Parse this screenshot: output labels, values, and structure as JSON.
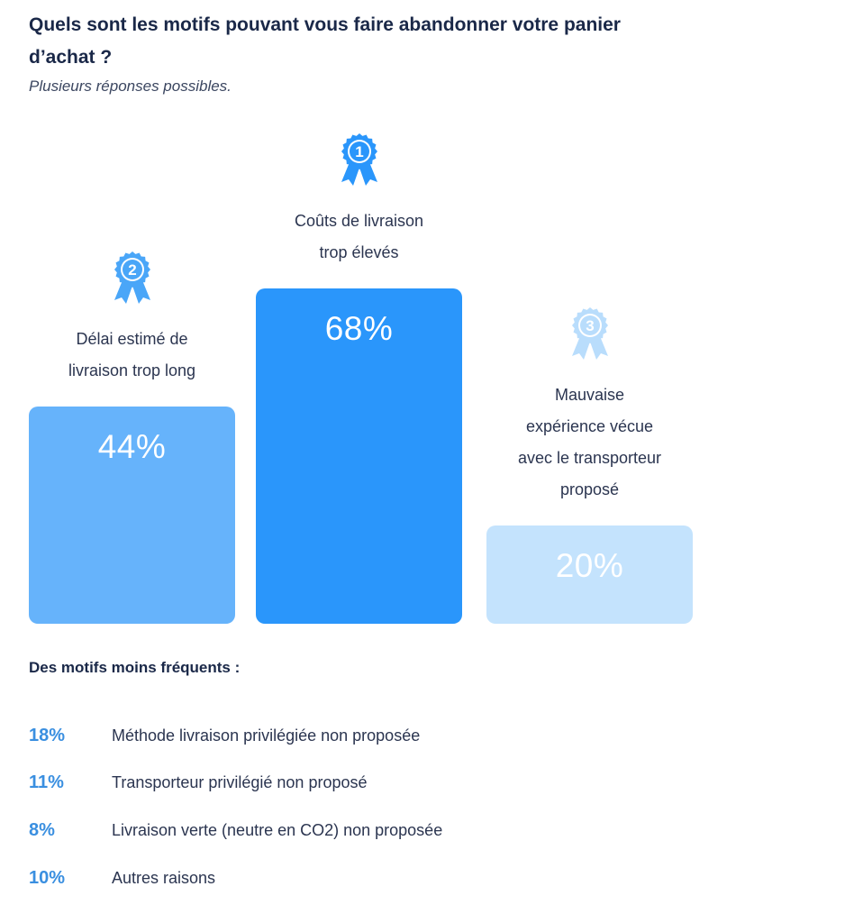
{
  "header": {
    "title": "Quels sont les motifs pouvant vous faire abandonner votre panier d’achat ?",
    "subtitle": "Plusieurs réponses possibles."
  },
  "chart_data": {
    "type": "bar",
    "categories": [
      "Délai estimé de livraison trop long",
      "Coûts de livraison trop élevés",
      "Mauvaise expérience vécue avec le transporteur proposé"
    ],
    "values": [
      44,
      68,
      20
    ],
    "value_labels": [
      "44%",
      "68%",
      "20%"
    ],
    "ranks": [
      "2",
      "1",
      "3"
    ],
    "unit": "%",
    "ylim": [
      0,
      100
    ],
    "colors": [
      "#66b3fb",
      "#2a96fb",
      "#c4e3fd"
    ],
    "medal_colors": [
      "#4aa6f8",
      "#2a96fb",
      "#b9ddfc"
    ],
    "grid": false,
    "legend": "none"
  },
  "minor": {
    "heading": "Des motifs moins fréquents :",
    "items": [
      {
        "pct": "18%",
        "label": "Méthode livraison privilégiée non proposée"
      },
      {
        "pct": "11%",
        "label": "Transporteur privilégié non proposé"
      },
      {
        "pct": "8%",
        "label": "Livraison verte (neutre en CO2) non proposée"
      },
      {
        "pct": "10%",
        "label": "Autres raisons"
      }
    ]
  }
}
